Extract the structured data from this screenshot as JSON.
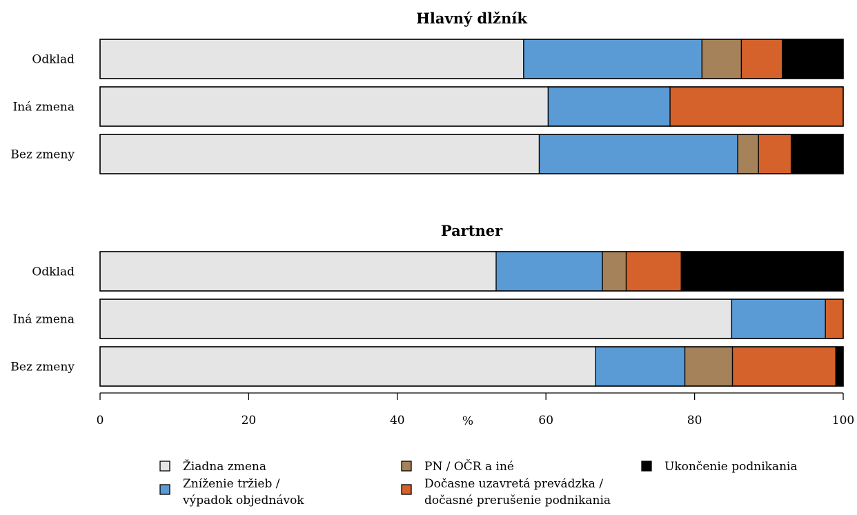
{
  "chart_data": {
    "type": "bar",
    "orientation": "horizontal",
    "stacked": true,
    "xaxis": {
      "label": "%",
      "xlim": [
        0,
        100
      ],
      "ticks": [
        "0",
        "20",
        "40",
        "60",
        "80",
        "100"
      ]
    },
    "legend": {
      "placement": "bottom",
      "items": [
        {
          "label_lines": [
            "Žiadna zmena"
          ],
          "color": "#e5e5e5"
        },
        {
          "label_lines": [
            "Zníženie tržieb /",
            "výpadok objednávok"
          ],
          "color": "#5b9bd5"
        },
        {
          "label_lines": [
            "PN / OČR a iné"
          ],
          "color": "#a5825a"
        },
        {
          "label_lines": [
            "Dočasne uzavretá prevádzka /",
            "dočasné prerušenie podnikania"
          ],
          "color": "#d5622b"
        },
        {
          "label_lines": [
            "Ukončenie podnikania"
          ],
          "color": "#000000"
        }
      ]
    },
    "series_names": [
      "Žiadna zmena",
      "Zníženie tržieb / výpadok objednávok",
      "PN / OČR a iné",
      "Dočasne uzavretá prevádzka / dočasné prerušenie podnikania",
      "Ukončenie podnikania"
    ],
    "colors": [
      "#e5e5e5",
      "#5b9bd5",
      "#a5825a",
      "#d5622b",
      "#000000"
    ],
    "panels": [
      {
        "title": "Hlavný dlžník",
        "categories": [
          "Odklad",
          "Iná zmena",
          "Bez zmeny"
        ],
        "values": [
          [
            57.0,
            24.0,
            5.3,
            5.5,
            8.2
          ],
          [
            60.3,
            16.4,
            0.0,
            23.3,
            0.0
          ],
          [
            59.1,
            26.7,
            2.8,
            4.4,
            7.0
          ]
        ]
      },
      {
        "title": "Partner",
        "categories": [
          "Odklad",
          "Iná zmena",
          "Bez zmeny"
        ],
        "values": [
          [
            53.3,
            14.3,
            3.2,
            7.4,
            21.8
          ],
          [
            85.0,
            12.6,
            0.0,
            2.4,
            0.0
          ],
          [
            66.7,
            12.0,
            6.4,
            13.9,
            1.0
          ]
        ]
      }
    ]
  }
}
